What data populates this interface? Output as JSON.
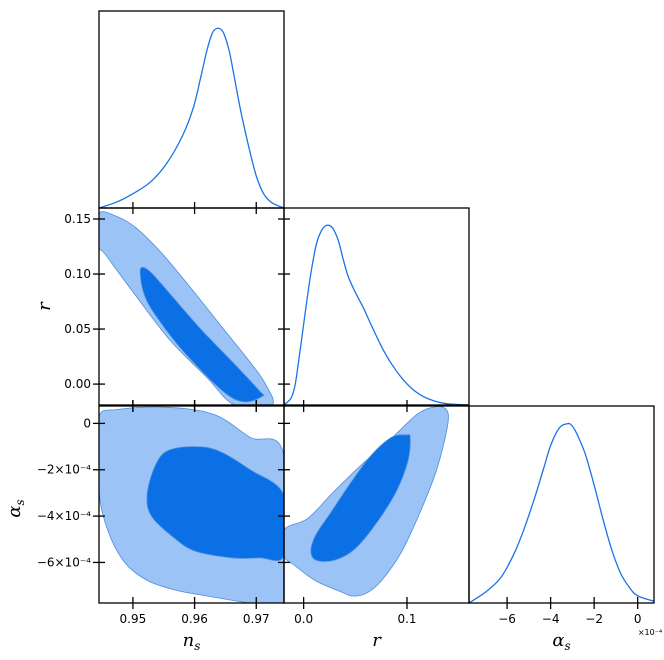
{
  "chart_data": {
    "type": "triangle-corner",
    "parameters": [
      "n_s",
      "r",
      "alpha_s"
    ],
    "colors": {
      "line": "#1a73e8",
      "contour_outer": "#9cc3f5",
      "contour_inner": "#0b6fe6",
      "contour_edge": "#4a8fe0"
    },
    "ranges": {
      "n_s": [
        0.9445,
        0.9745
      ],
      "r": [
        -0.019,
        0.16
      ],
      "alpha_s": [
        -0.000775,
        7.5e-05
      ]
    },
    "axis_labels": {
      "n_s": {
        "main": "n",
        "sub": "s"
      },
      "r": {
        "main": "r",
        "sub": ""
      },
      "alpha_s": {
        "main": "α",
        "sub": "s"
      }
    },
    "ticks": {
      "n_s": [
        {
          "v": 0.95,
          "label": "0.95"
        },
        {
          "v": 0.96,
          "label": "0.96"
        },
        {
          "v": 0.97,
          "label": "0.97"
        }
      ],
      "r_y": [
        {
          "v": 0.0,
          "label": "0.00"
        },
        {
          "v": 0.05,
          "label": "0.05"
        },
        {
          "v": 0.1,
          "label": "0.10"
        },
        {
          "v": 0.15,
          "label": "0.15"
        }
      ],
      "r_x": [
        {
          "v": 0.0,
          "label": "0.0"
        },
        {
          "v": 0.1,
          "label": "0.1"
        }
      ],
      "alpha_s_y": [
        {
          "v": 0.0,
          "label": "0"
        },
        {
          "v": -0.0002,
          "label": "−2×10⁻⁴"
        },
        {
          "v": -0.0004,
          "label": "−4×10⁻⁴"
        },
        {
          "v": -0.0006,
          "label": "−6×10⁻⁴"
        }
      ],
      "alpha_s_x": [
        {
          "v": -0.0006,
          "label": "−6"
        },
        {
          "v": -0.0004,
          "label": "−4"
        },
        {
          "v": -0.0002,
          "label": "−2"
        },
        {
          "v": 0.0,
          "label": "0"
        }
      ]
    },
    "alpha_s_x_exponent": "×10⁻⁴",
    "marginals": {
      "n_s": {
        "x": [
          0.9445,
          0.9475,
          0.9505,
          0.953,
          0.9555,
          0.958,
          0.9598,
          0.961,
          0.962,
          0.9628,
          0.9634,
          0.9642,
          0.9648,
          0.9656,
          0.9665,
          0.9675,
          0.9688,
          0.97,
          0.9712,
          0.9725,
          0.9745
        ],
        "y": [
          0.0,
          0.035,
          0.09,
          0.15,
          0.25,
          0.4,
          0.56,
          0.73,
          0.88,
          0.97,
          1.0,
          1.0,
          0.97,
          0.88,
          0.72,
          0.54,
          0.34,
          0.18,
          0.08,
          0.03,
          0.0
        ]
      },
      "r": {
        "x": [
          -0.019,
          -0.012,
          -0.008,
          -0.004,
          0.0,
          0.004,
          0.008,
          0.012,
          0.016,
          0.021,
          0.026,
          0.03,
          0.034,
          0.038,
          0.043,
          0.05,
          0.058,
          0.066,
          0.075,
          0.085,
          0.095,
          0.105,
          0.115,
          0.125,
          0.135,
          0.145,
          0.16
        ],
        "y": [
          0.0,
          0.04,
          0.12,
          0.28,
          0.45,
          0.62,
          0.77,
          0.89,
          0.96,
          1.0,
          1.0,
          0.97,
          0.91,
          0.82,
          0.72,
          0.63,
          0.54,
          0.44,
          0.33,
          0.23,
          0.15,
          0.09,
          0.05,
          0.025,
          0.01,
          0.004,
          0.0
        ]
      },
      "alpha_s": {
        "x": [
          -0.000775,
          -0.0007,
          -0.00063,
          -0.00057,
          -0.00052,
          -0.00047,
          -0.00043,
          -0.0004,
          -0.00037,
          -0.00035,
          -0.00033,
          -0.00031,
          -0.00029,
          -0.00027,
          -0.00024,
          -0.0002,
          -0.00016,
          -0.00012,
          -8e-05,
          -4e-05,
          0.0,
          7.5e-05
        ],
        "y": [
          0.0,
          0.06,
          0.14,
          0.27,
          0.42,
          0.6,
          0.76,
          0.88,
          0.96,
          0.99,
          1.0,
          1.0,
          0.97,
          0.92,
          0.83,
          0.66,
          0.47,
          0.3,
          0.17,
          0.09,
          0.04,
          0.01
        ]
      }
    },
    "contours_2d": {
      "r_vs_n_s": {
        "outer": [
          [
            0.9445,
            0.155
          ],
          [
            0.9475,
            0.152
          ],
          [
            0.9505,
            0.142
          ],
          [
            0.9545,
            0.12
          ],
          [
            0.959,
            0.09
          ],
          [
            0.964,
            0.055
          ],
          [
            0.969,
            0.02
          ],
          [
            0.9715,
            0.0
          ],
          [
            0.9725,
            -0.019
          ],
          [
            0.9665,
            -0.019
          ],
          [
            0.962,
            0.006
          ],
          [
            0.956,
            0.04
          ],
          [
            0.9505,
            0.08
          ],
          [
            0.9455,
            0.118
          ],
          [
            0.9445,
            0.125
          ]
        ],
        "inner": [
          [
            0.9515,
            0.106
          ],
          [
            0.953,
            0.101
          ],
          [
            0.956,
            0.082
          ],
          [
            0.961,
            0.05
          ],
          [
            0.9665,
            0.018
          ],
          [
            0.9705,
            -0.006
          ],
          [
            0.971,
            -0.011
          ],
          [
            0.968,
            -0.016
          ],
          [
            0.9645,
            -0.006
          ],
          [
            0.958,
            0.031
          ],
          [
            0.9535,
            0.064
          ],
          [
            0.9518,
            0.082
          ],
          [
            0.9512,
            0.1
          ]
        ]
      },
      "alpha_s_vs_n_s": {
        "outer": [
          [
            0.9445,
            3e-05
          ],
          [
            0.9475,
            6e-05
          ],
          [
            0.955,
            7e-05
          ],
          [
            0.963,
            4e-05
          ],
          [
            0.969,
            -6e-05
          ],
          [
            0.9745,
            -0.00014
          ],
          [
            0.9745,
            -0.000775
          ],
          [
            0.9725,
            -0.000775
          ],
          [
            0.969,
            -0.000775
          ],
          [
            0.962,
            -0.000745
          ],
          [
            0.957,
            -0.00072
          ],
          [
            0.9525,
            -0.00068
          ],
          [
            0.949,
            -0.00061
          ],
          [
            0.9465,
            -0.0005
          ],
          [
            0.9447,
            -0.00034
          ],
          [
            0.9445,
            -0.00017
          ]
        ],
        "inner": [
          [
            0.9555,
            -0.00012
          ],
          [
            0.96,
            -0.0001
          ],
          [
            0.964,
            -0.00012
          ],
          [
            0.969,
            -0.0002
          ],
          [
            0.9745,
            -0.00031
          ],
          [
            0.9745,
            -0.00057
          ],
          [
            0.9705,
            -0.00058
          ],
          [
            0.966,
            -0.00058
          ],
          [
            0.96,
            -0.00055
          ],
          [
            0.9565,
            -0.00049
          ],
          [
            0.953,
            -0.0004
          ],
          [
            0.9523,
            -0.00031
          ],
          [
            0.9535,
            -0.00019
          ]
        ]
      },
      "alpha_s_vs_r": {
        "outer": [
          [
            0.135,
            7e-05
          ],
          [
            0.14,
            4e-05
          ],
          [
            0.138,
            -4e-05
          ],
          [
            0.128,
            -0.00021
          ],
          [
            0.112,
            -0.00039
          ],
          [
            0.094,
            -0.00056
          ],
          [
            0.075,
            -0.00068
          ],
          [
            0.06,
            -0.000735
          ],
          [
            0.047,
            -0.000745
          ],
          [
            0.038,
            -0.00073
          ],
          [
            0.012,
            -0.00068
          ],
          [
            -0.008,
            -0.000615
          ],
          [
            -0.019,
            -0.00057
          ],
          [
            -0.019,
            -0.00046
          ],
          [
            0.004,
            -0.00041
          ],
          [
            0.028,
            -0.0003
          ],
          [
            0.058,
            -0.00017
          ],
          [
            0.086,
            -6e-05
          ],
          [
            0.11,
            4e-05
          ],
          [
            0.125,
            7e-05
          ]
        ],
        "inner": [
          [
            0.099,
            -5e-05
          ],
          [
            0.103,
            -6e-05
          ],
          [
            0.101,
            -0.00016
          ],
          [
            0.09,
            -0.00029
          ],
          [
            0.072,
            -0.00042
          ],
          [
            0.05,
            -0.00054
          ],
          [
            0.03,
            -0.00059
          ],
          [
            0.012,
            -0.00059
          ],
          [
            0.007,
            -0.00055
          ],
          [
            0.012,
            -0.00048
          ],
          [
            0.027,
            -0.00038
          ],
          [
            0.045,
            -0.00026
          ],
          [
            0.065,
            -0.00014
          ],
          [
            0.085,
            -6e-05
          ]
        ]
      }
    }
  }
}
